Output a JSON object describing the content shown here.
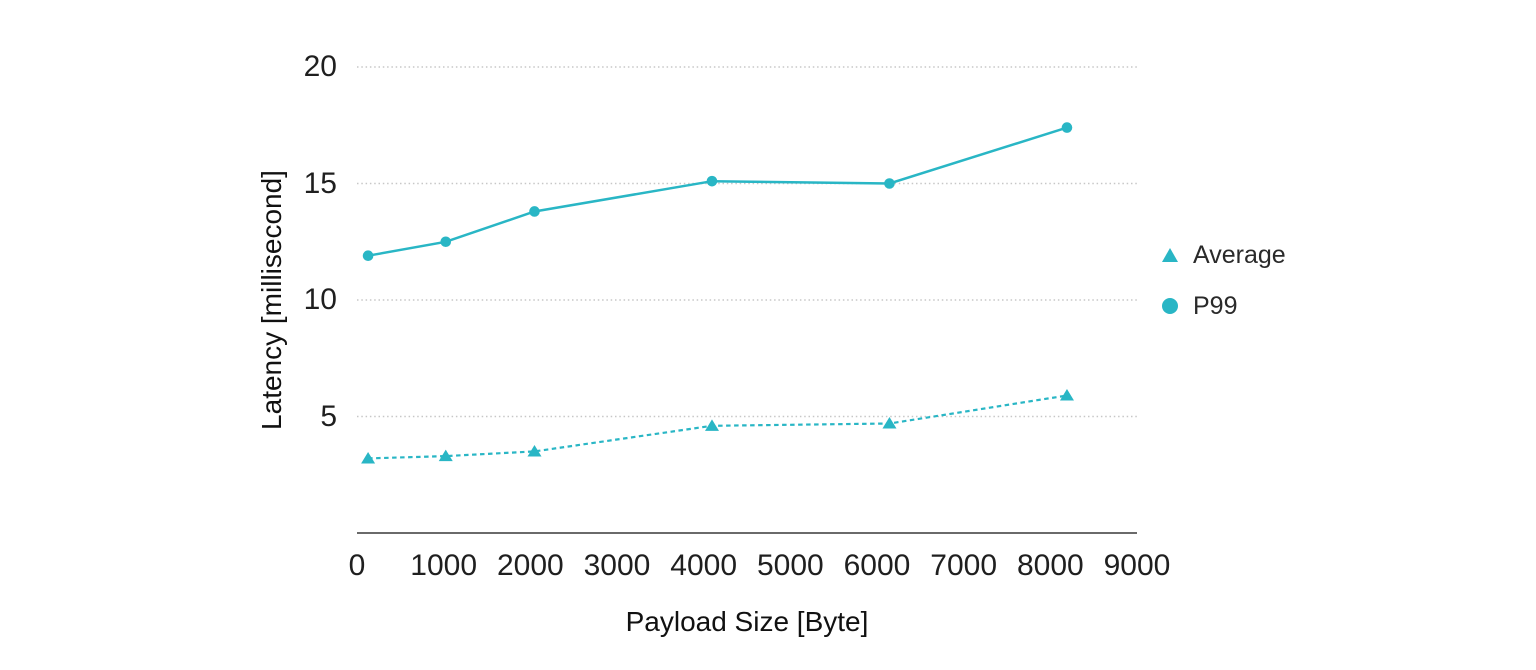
{
  "chart_data": {
    "type": "line",
    "title": "",
    "xlabel": "Payload Size [Byte]",
    "ylabel": "Latency [millisecond]",
    "x": [
      128,
      1024,
      2048,
      4096,
      6144,
      8192
    ],
    "series": [
      {
        "name": "Average",
        "values": [
          3.2,
          3.3,
          3.5,
          4.6,
          4.7,
          5.9
        ],
        "marker": "triangle",
        "line_style": "dashed",
        "color": "#29b6c5"
      },
      {
        "name": "P99",
        "values": [
          11.9,
          12.5,
          13.8,
          15.1,
          15.0,
          17.4
        ],
        "marker": "circle",
        "line_style": "solid",
        "color": "#29b6c5"
      }
    ],
    "xlim": [
      0,
      9000
    ],
    "ylim": [
      0,
      20
    ],
    "x_ticks": [
      0,
      1000,
      2000,
      3000,
      4000,
      5000,
      6000,
      7000,
      8000,
      9000
    ],
    "y_ticks": [
      5,
      10,
      15,
      20
    ],
    "grid": "horizontal-dotted",
    "legend_position": "right",
    "colors": {
      "accent": "#29b6c5",
      "text": "#1f1f1f",
      "grid": "#c7c7c7",
      "axis": "#111111",
      "background": "#ffffff"
    }
  }
}
